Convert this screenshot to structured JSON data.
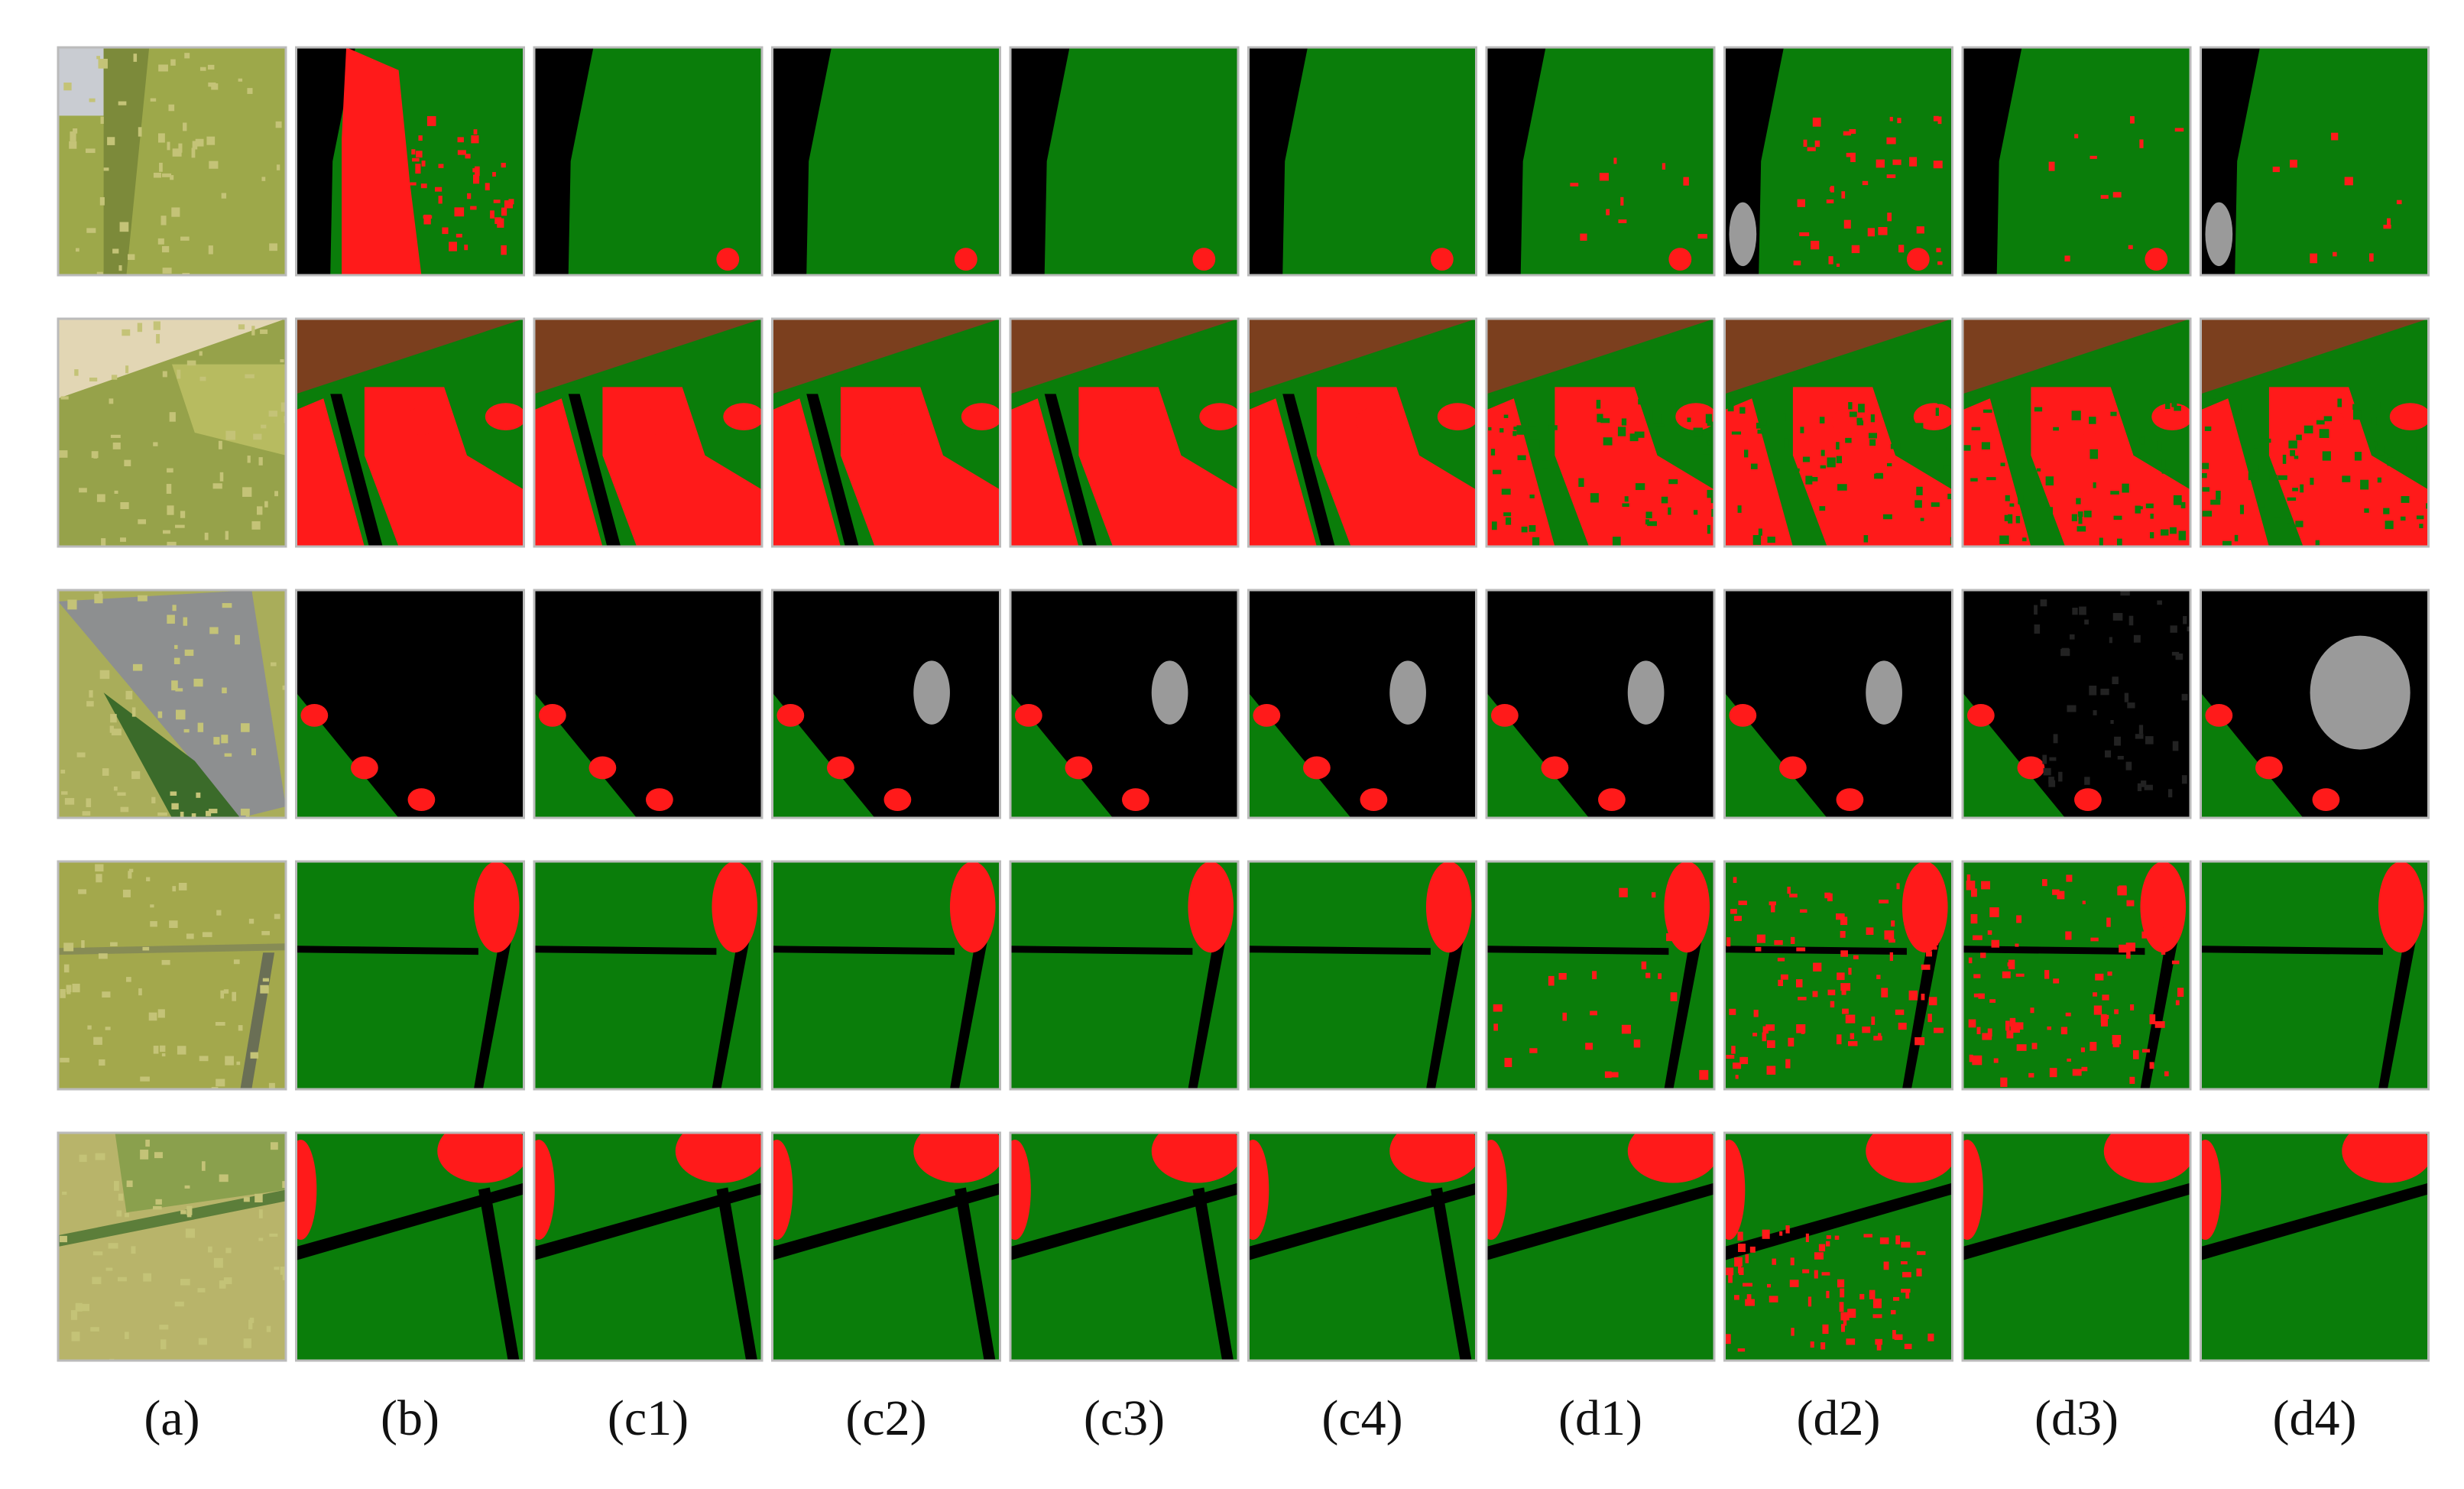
{
  "figure": {
    "columns": [
      "(a)",
      "(b)",
      "(c1)",
      "(c2)",
      "(c3)",
      "(c4)",
      "(d1)",
      "(d2)",
      "(d3)",
      "(d4)"
    ]
  }
}
